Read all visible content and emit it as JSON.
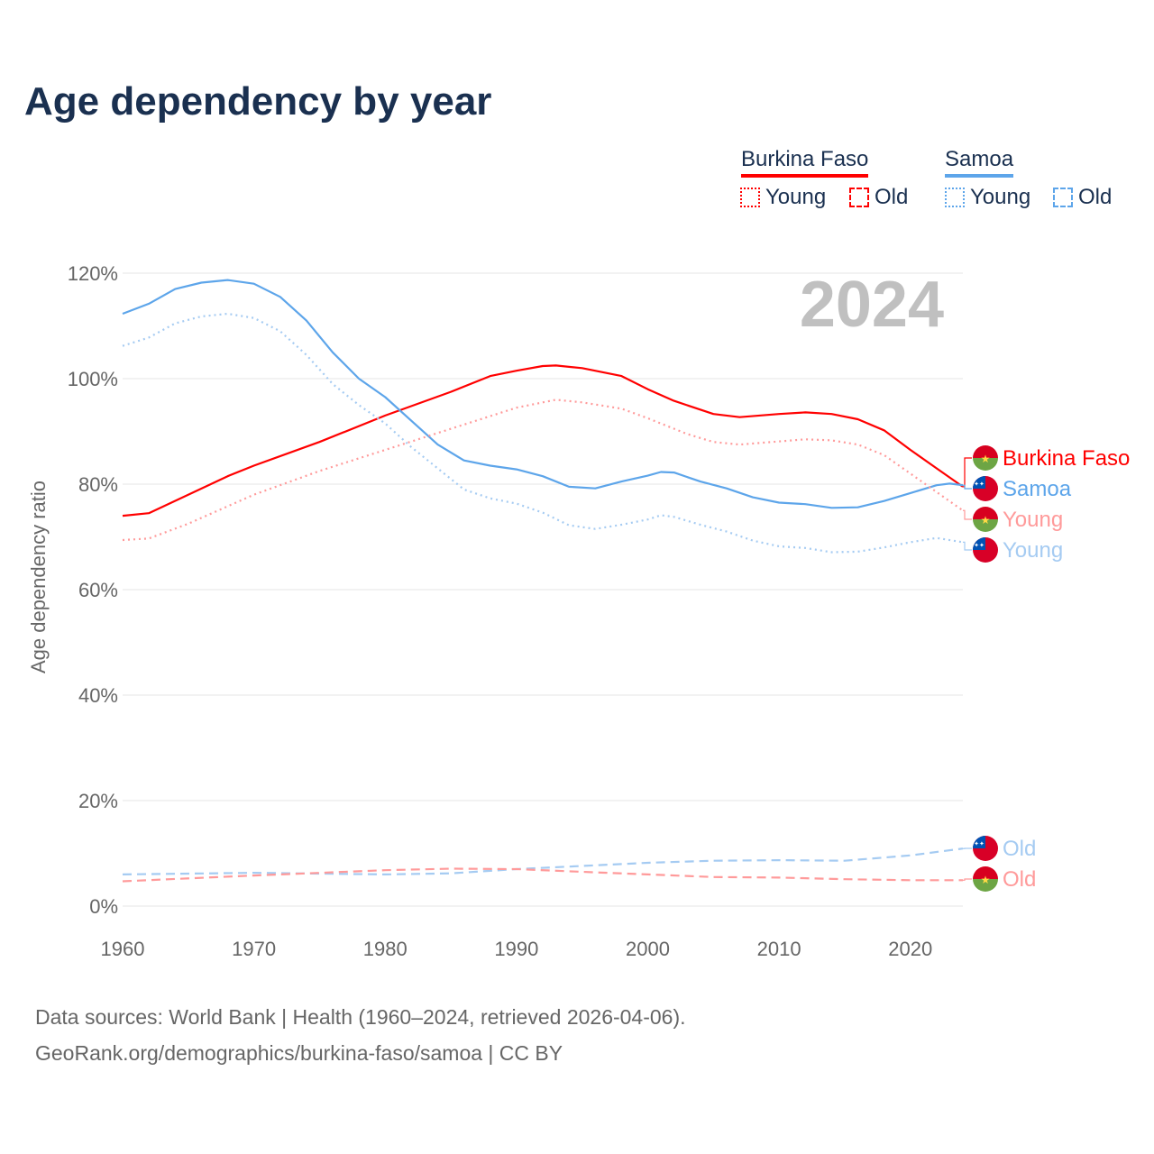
{
  "title": "Age dependency by year",
  "legend": {
    "countries": [
      {
        "name": "Burkina Faso",
        "color": "#ff0000",
        "items": [
          "Young",
          "Old"
        ]
      },
      {
        "name": "Samoa",
        "color": "#5da5ea",
        "items": [
          "Young",
          "Old"
        ]
      }
    ]
  },
  "footer": {
    "line1": "Data sources: World Bank | Health (1960–2024, retrieved 2026-04-06).",
    "line2": "GeoRank.org/demographics/burkina-faso/samoa | CC BY"
  },
  "chart_data": {
    "type": "line",
    "title": "Age dependency by year",
    "year_label": "2024",
    "xlabel": "",
    "ylabel": "Age dependency ratio",
    "xlim": [
      1960,
      2024
    ],
    "ylim": [
      0,
      120
    ],
    "x_ticks": [
      "1960",
      "1970",
      "1980",
      "1990",
      "2000",
      "2010",
      "2020"
    ],
    "y_ticks": [
      "0%",
      "20%",
      "40%",
      "60%",
      "80%",
      "100%",
      "120%"
    ],
    "grid": true,
    "series": [
      {
        "name": "Burkina Faso",
        "label": "Burkina Faso",
        "country": "burkina",
        "style": "solid",
        "color": "#ff0000",
        "x": [
          1960,
          1962,
          1965,
          1968,
          1970,
          1975,
          1980,
          1985,
          1988,
          1990,
          1992,
          1993,
          1995,
          1998,
          2000,
          2002,
          2005,
          2007,
          2010,
          2012,
          2014,
          2016,
          2018,
          2020,
          2022,
          2024
        ],
        "y": [
          74,
          74.5,
          78,
          81.5,
          83.5,
          88,
          93,
          97.5,
          100.5,
          101.5,
          102.4,
          102.5,
          102,
          100.5,
          98,
          95.8,
          93.3,
          92.7,
          93.3,
          93.6,
          93.3,
          92.3,
          90.2,
          86.5,
          83,
          79.5
        ]
      },
      {
        "name": "Samoa",
        "label": "Samoa",
        "country": "samoa",
        "style": "solid",
        "color": "#5da5ea",
        "x": [
          1960,
          1962,
          1964,
          1966,
          1968,
          1970,
          1972,
          1974,
          1976,
          1978,
          1980,
          1982,
          1984,
          1986,
          1988,
          1990,
          1992,
          1994,
          1996,
          1998,
          2000,
          2001,
          2002,
          2004,
          2006,
          2008,
          2010,
          2012,
          2014,
          2016,
          2018,
          2020,
          2022,
          2023,
          2024
        ],
        "y": [
          112.3,
          114.2,
          117,
          118.2,
          118.7,
          118,
          115.5,
          111,
          105,
          100,
          96.5,
          92,
          87.5,
          84.5,
          83.5,
          82.8,
          81.5,
          79.5,
          79.2,
          80.5,
          81.6,
          82.3,
          82.2,
          80.5,
          79.2,
          77.5,
          76.5,
          76.2,
          75.5,
          75.6,
          76.8,
          78.3,
          79.8,
          80.1,
          79.8
        ]
      },
      {
        "name": "Burkina Faso Young",
        "label": "Young",
        "country": "burkina",
        "style": "dotted",
        "color": "#ff9a9a",
        "x": [
          1960,
          1962,
          1965,
          1970,
          1975,
          1980,
          1985,
          1990,
          1993,
          1995,
          1998,
          2000,
          2003,
          2005,
          2007,
          2010,
          2012,
          2014,
          2016,
          2018,
          2020,
          2022,
          2024
        ],
        "y": [
          69.4,
          69.7,
          72.5,
          78,
          82.5,
          86.5,
          90.5,
          94.5,
          96,
          95.5,
          94.3,
          92.5,
          89.5,
          88,
          87.5,
          88.1,
          88.5,
          88.3,
          87.5,
          85.5,
          82,
          78.5,
          75
        ]
      },
      {
        "name": "Samoa Young",
        "label": "Young",
        "country": "samoa",
        "style": "dotted",
        "color": "#a5cbf2",
        "x": [
          1960,
          1962,
          1964,
          1966,
          1968,
          1970,
          1972,
          1974,
          1976,
          1978,
          1980,
          1982,
          1984,
          1986,
          1988,
          1990,
          1992,
          1994,
          1996,
          1998,
          2000,
          2001,
          2002,
          2004,
          2006,
          2008,
          2010,
          2012,
          2014,
          2016,
          2018,
          2020,
          2022,
          2024
        ],
        "y": [
          106.2,
          107.8,
          110.5,
          111.8,
          112.3,
          111.5,
          109,
          104.5,
          99,
          95,
          91.5,
          87,
          83,
          79,
          77.3,
          76.3,
          74.6,
          72.2,
          71.5,
          72.3,
          73.3,
          74.1,
          73.8,
          72.3,
          71,
          69.3,
          68.2,
          67.9,
          67.1,
          67.2,
          68,
          69,
          69.8,
          69
        ]
      },
      {
        "name": "Samoa Old",
        "label": "Old",
        "country": "samoa",
        "style": "dashed",
        "color": "#a5cbf2",
        "x": [
          1960,
          1970,
          1980,
          1985,
          1990,
          1995,
          2000,
          2005,
          2010,
          2015,
          2020,
          2024
        ],
        "y": [
          6,
          6.3,
          6,
          6.2,
          7,
          7.6,
          8.2,
          8.6,
          8.7,
          8.6,
          9.6,
          10.9
        ]
      },
      {
        "name": "Burkina Faso Old",
        "label": "Old",
        "country": "burkina",
        "style": "dashed",
        "color": "#ff9a9a",
        "x": [
          1960,
          1970,
          1980,
          1985,
          1990,
          1995,
          2000,
          2005,
          2010,
          2015,
          2020,
          2024
        ],
        "y": [
          4.7,
          5.8,
          6.8,
          7.1,
          7,
          6.5,
          6,
          5.5,
          5.4,
          5.1,
          4.9,
          4.9
        ]
      }
    ]
  }
}
